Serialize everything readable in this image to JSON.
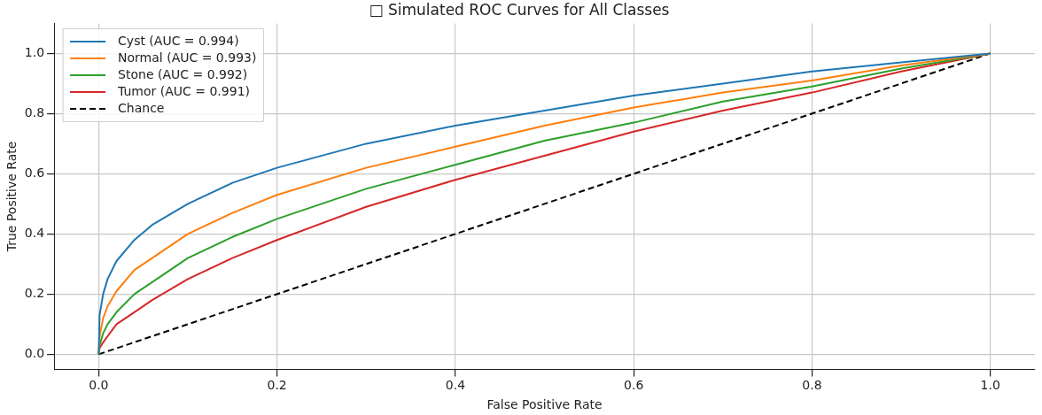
{
  "chart_data": {
    "type": "line",
    "title": "□ Simulated ROC Curves for All Classes",
    "xlabel": "False Positive Rate",
    "ylabel": "True Positive Rate",
    "x": [
      0,
      0.001,
      0.005,
      0.01,
      0.02,
      0.04,
      0.06,
      0.1,
      0.15,
      0.2,
      0.3,
      0.4,
      0.5,
      0.6,
      0.7,
      0.8,
      0.9,
      1.0
    ],
    "series": [
      {
        "name": "Cyst (AUC = 0.994)",
        "color": "#1f77b4",
        "values": [
          0,
          0.13,
          0.2,
          0.25,
          0.31,
          0.38,
          0.43,
          0.5,
          0.57,
          0.62,
          0.7,
          0.76,
          0.81,
          0.86,
          0.9,
          0.94,
          0.97,
          1
        ]
      },
      {
        "name": "Normal (AUC = 0.993)",
        "color": "#ff7f0e",
        "values": [
          0,
          0.06,
          0.12,
          0.16,
          0.21,
          0.28,
          0.32,
          0.4,
          0.47,
          0.53,
          0.62,
          0.69,
          0.76,
          0.82,
          0.87,
          0.91,
          0.96,
          1
        ]
      },
      {
        "name": "Stone (AUC = 0.992)",
        "color": "#2ca02c",
        "values": [
          0,
          0.03,
          0.07,
          0.1,
          0.14,
          0.2,
          0.24,
          0.32,
          0.39,
          0.45,
          0.55,
          0.63,
          0.71,
          0.77,
          0.84,
          0.89,
          0.95,
          1
        ]
      },
      {
        "name": "Tumor (AUC = 0.991)",
        "color": "#d62728",
        "values": [
          0,
          0.02,
          0.04,
          0.06,
          0.1,
          0.14,
          0.18,
          0.25,
          0.32,
          0.38,
          0.49,
          0.58,
          0.66,
          0.74,
          0.81,
          0.87,
          0.94,
          1
        ]
      },
      {
        "name": "Chance",
        "color": "#000000",
        "x": [
          0,
          1
        ],
        "values": [
          0,
          1
        ],
        "line_style": "dashed"
      }
    ],
    "xlim": [
      -0.05,
      1.05
    ],
    "ylim": [
      -0.05,
      1.1
    ],
    "xticks": [
      {
        "value": 0,
        "label": "0.0"
      },
      {
        "value": 0.2,
        "label": "0.2"
      },
      {
        "value": 0.4,
        "label": "0.4"
      },
      {
        "value": 0.6,
        "label": "0.6"
      },
      {
        "value": 0.8,
        "label": "0.8"
      },
      {
        "value": 1,
        "label": "1.0"
      }
    ],
    "yticks": [
      {
        "value": 0,
        "label": "0.0"
      },
      {
        "value": 0.2,
        "label": "0.2"
      },
      {
        "value": 0.4,
        "label": "0.4"
      },
      {
        "value": 0.6,
        "label": "0.6"
      },
      {
        "value": 0.8,
        "label": "0.8"
      },
      {
        "value": 1,
        "label": "1.0"
      }
    ],
    "grid": true,
    "legend": "top left",
    "marker": "none",
    "line_style": "solid"
  }
}
